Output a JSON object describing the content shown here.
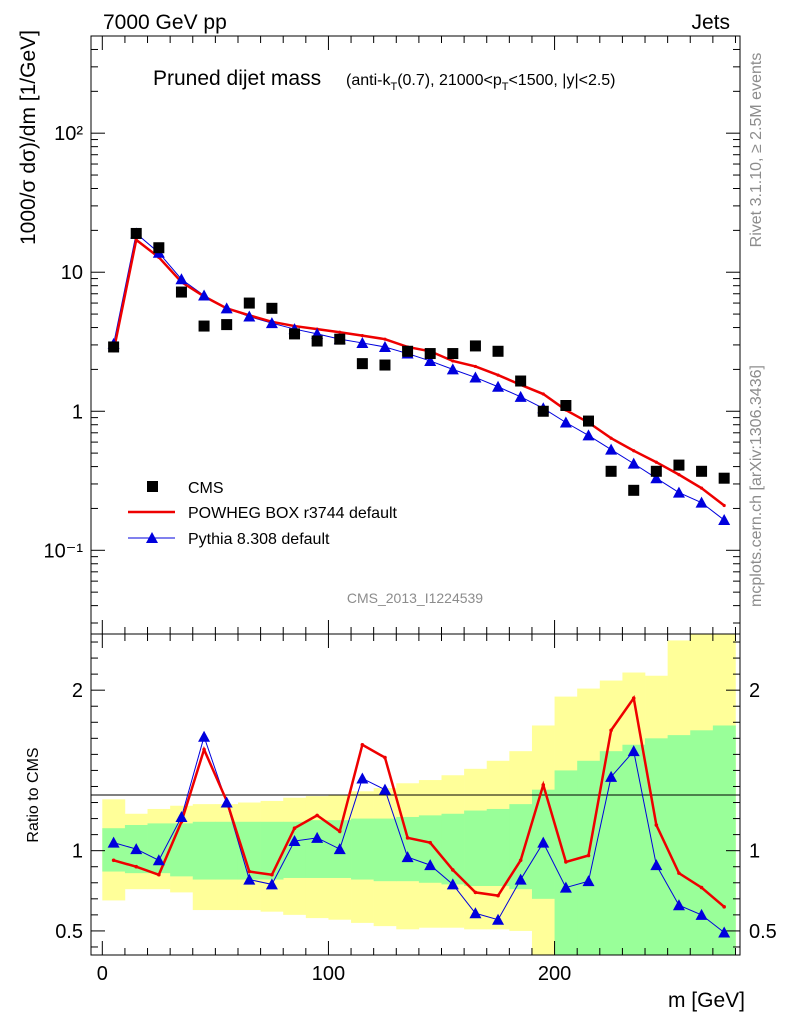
{
  "header": {
    "left": "7000 GeV pp",
    "right": "Jets",
    "side_top": "Rivet 3.1.10, ≥ 2.5M events",
    "side_bottom": "mcplots.cern.ch [arXiv:1306.3436]",
    "watermark": "CMS_2013_I1224539"
  },
  "chart_data": [
    {
      "type": "scatter",
      "title": "Pruned dijet mass",
      "subtitle": "(anti-kT(0.7), 21000<pT<1500, |y|<2.5)",
      "ylabel": "1000/σ dσ)/dm [1/GeV]",
      "yscale": "log",
      "xlim": [
        -5,
        282
      ],
      "ylim": [
        0.025,
        500
      ],
      "ytick_labels": [
        "10⁻¹",
        "1",
        "10",
        "10²"
      ],
      "legend_position": "bottom-left",
      "x": [
        5,
        15,
        25,
        35,
        45,
        55,
        65,
        75,
        85,
        95,
        105,
        115,
        125,
        135,
        145,
        155,
        165,
        175,
        185,
        195,
        205,
        215,
        225,
        235,
        245,
        255,
        265,
        275
      ],
      "series": [
        {
          "name": "CMS",
          "color": "#000000",
          "marker": "square",
          "values": [
            2.9,
            19,
            15,
            7.2,
            4.1,
            4.2,
            6.0,
            5.5,
            3.6,
            3.2,
            3.3,
            2.2,
            2.15,
            2.7,
            2.6,
            2.6,
            2.95,
            2.7,
            1.65,
            1.0,
            1.1,
            0.85,
            0.37,
            0.27,
            0.37,
            0.41,
            0.37,
            0.33
          ]
        },
        {
          "name": "POWHEG BOX r3744 default",
          "color": "#ee0000",
          "marker": "none",
          "values": [
            2.72,
            17.1,
            12.8,
            8.5,
            6.7,
            5.5,
            4.9,
            4.4,
            4.1,
            3.9,
            3.7,
            3.5,
            3.3,
            2.9,
            2.7,
            2.3,
            2.1,
            1.82,
            1.55,
            1.33,
            1.02,
            0.83,
            0.64,
            0.52,
            0.43,
            0.35,
            0.28,
            0.21
          ]
        },
        {
          "name": "Pythia 8.308 default",
          "color": "#0000dd",
          "marker": "triangle",
          "values": [
            3.05,
            19.0,
            13.8,
            8.9,
            6.8,
            5.5,
            4.8,
            4.3,
            3.9,
            3.6,
            3.3,
            3.1,
            2.9,
            2.6,
            2.3,
            2.0,
            1.75,
            1.5,
            1.27,
            1.05,
            0.83,
            0.67,
            0.53,
            0.42,
            0.33,
            0.26,
            0.22,
            0.165
          ]
        }
      ]
    },
    {
      "type": "line",
      "ylabel": "Ratio to CMS",
      "xlabel": "m [GeV]",
      "xlim": [
        -5,
        282
      ],
      "ylim": [
        0.35,
        2.35
      ],
      "xtick_labels": [
        "0",
        "100",
        "200"
      ],
      "ytick_labels": [
        "0.5",
        "1",
        "2"
      ],
      "reference_line": 1,
      "x": [
        5,
        15,
        25,
        35,
        45,
        55,
        65,
        75,
        85,
        95,
        105,
        115,
        125,
        135,
        145,
        155,
        165,
        175,
        185,
        195,
        205,
        215,
        225,
        235,
        245,
        255,
        265,
        275
      ],
      "bin_edges": [
        0,
        10,
        20,
        30,
        40,
        50,
        60,
        70,
        80,
        90,
        100,
        110,
        120,
        130,
        140,
        150,
        160,
        170,
        180,
        190,
        200,
        210,
        220,
        230,
        240,
        250,
        260,
        270,
        280
      ],
      "uncertainty_bands": {
        "inner": {
          "color": "#99ff99",
          "low": [
            0.87,
            0.86,
            0.86,
            0.84,
            0.82,
            0.82,
            0.82,
            0.82,
            0.83,
            0.83,
            0.83,
            0.82,
            0.81,
            0.81,
            0.8,
            0.79,
            0.78,
            0.78,
            0.76,
            0.7,
            0.34,
            0.34,
            0.34,
            0.34,
            0.34,
            0.34,
            0.34,
            0.34
          ],
          "high": [
            1.14,
            1.16,
            1.17,
            1.17,
            1.18,
            1.18,
            1.18,
            1.18,
            1.18,
            1.19,
            1.19,
            1.2,
            1.2,
            1.21,
            1.22,
            1.23,
            1.25,
            1.26,
            1.29,
            1.38,
            1.5,
            1.56,
            1.62,
            1.66,
            1.7,
            1.72,
            1.75,
            1.78
          ]
        },
        "outer": {
          "color": "#ffff99",
          "low": [
            0.69,
            0.76,
            0.76,
            0.74,
            0.63,
            0.63,
            0.63,
            0.62,
            0.6,
            0.58,
            0.57,
            0.55,
            0.53,
            0.51,
            0.52,
            0.52,
            0.51,
            0.51,
            0.5,
            0.34,
            0.34,
            0.34,
            0.34,
            0.34,
            0.34,
            0.34,
            0.34,
            0.34
          ],
          "high": [
            1.32,
            1.23,
            1.26,
            1.28,
            1.29,
            1.29,
            1.3,
            1.31,
            1.33,
            1.34,
            1.35,
            1.37,
            1.39,
            1.42,
            1.44,
            1.47,
            1.51,
            1.56,
            1.62,
            1.78,
            1.96,
            2.01,
            2.06,
            2.11,
            2.09,
            2.31,
            2.35,
            2.35
          ]
        }
      },
      "series": [
        {
          "name": "POWHEG BOX r3744 default",
          "color": "#ee0000",
          "marker": "none",
          "values": [
            0.94,
            0.9,
            0.85,
            1.18,
            1.63,
            1.31,
            0.87,
            0.85,
            1.14,
            1.22,
            1.12,
            1.66,
            1.58,
            1.08,
            1.05,
            0.88,
            0.74,
            0.72,
            0.94,
            1.41,
            0.93,
            0.97,
            1.75,
            1.95,
            1.16,
            0.86,
            0.77,
            0.65
          ]
        },
        {
          "name": "Pythia 8.308 default",
          "color": "#0000dd",
          "marker": "triangle",
          "values": [
            1.05,
            1.01,
            0.94,
            1.21,
            1.71,
            1.3,
            0.82,
            0.79,
            1.06,
            1.08,
            1.01,
            1.45,
            1.38,
            0.96,
            0.91,
            0.79,
            0.61,
            0.57,
            0.82,
            1.05,
            0.77,
            0.81,
            1.46,
            1.62,
            0.91,
            0.66,
            0.6,
            0.49
          ]
        }
      ]
    }
  ]
}
